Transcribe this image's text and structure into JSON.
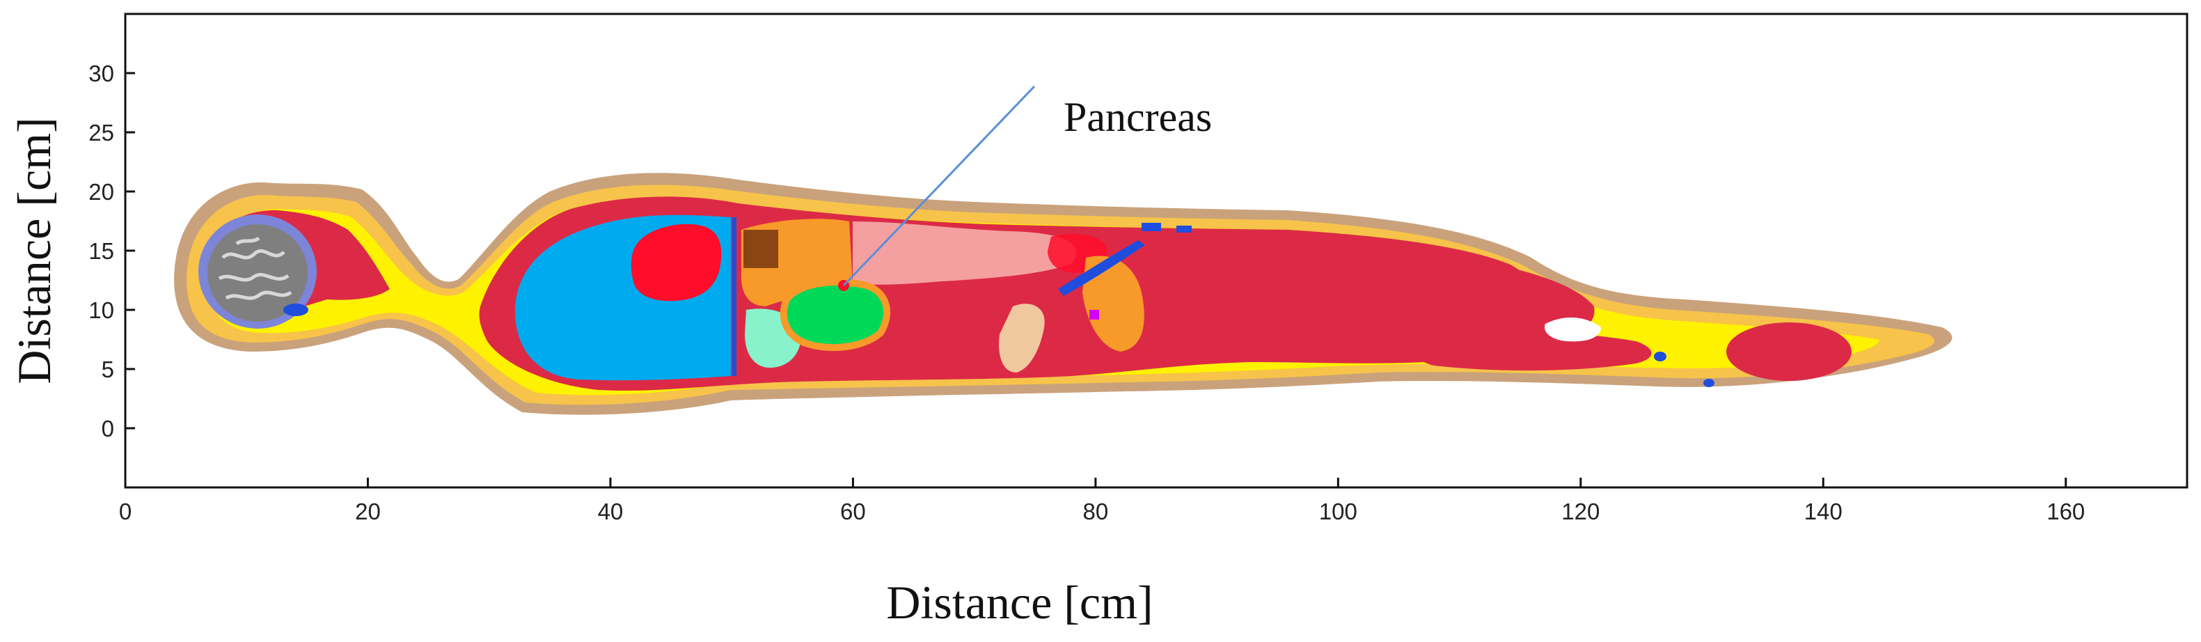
{
  "figure": {
    "annotation": "Pancreas",
    "x_axis": {
      "label": "Distance [cm]",
      "ticks": [
        "0",
        "20",
        "40",
        "60",
        "80",
        "100",
        "120",
        "140",
        "160"
      ],
      "range": [
        0,
        170
      ]
    },
    "y_axis": {
      "label": "Distance [cm]",
      "ticks": [
        "0",
        "5",
        "10",
        "15",
        "20",
        "25",
        "30"
      ],
      "range": [
        -5,
        35
      ]
    },
    "colors": {
      "skin": "#c9a27c",
      "fat": "#f7c34a",
      "connective": "#fff200",
      "muscle": "#dc2a46",
      "lung": "#00aaee",
      "heart": "#ff0d2a",
      "liver": "#f79a2a",
      "stomach": "#f5a0a0",
      "spleen_cyan": "#88f2cc",
      "kidney_green": "#00d957",
      "brain_gray": "#7f7f7f",
      "skull_blue": "#7d85d8",
      "vessel_blue": "#1f4ddd",
      "bone": "#f0c8a0",
      "pointer": "#5b8fd6"
    }
  }
}
